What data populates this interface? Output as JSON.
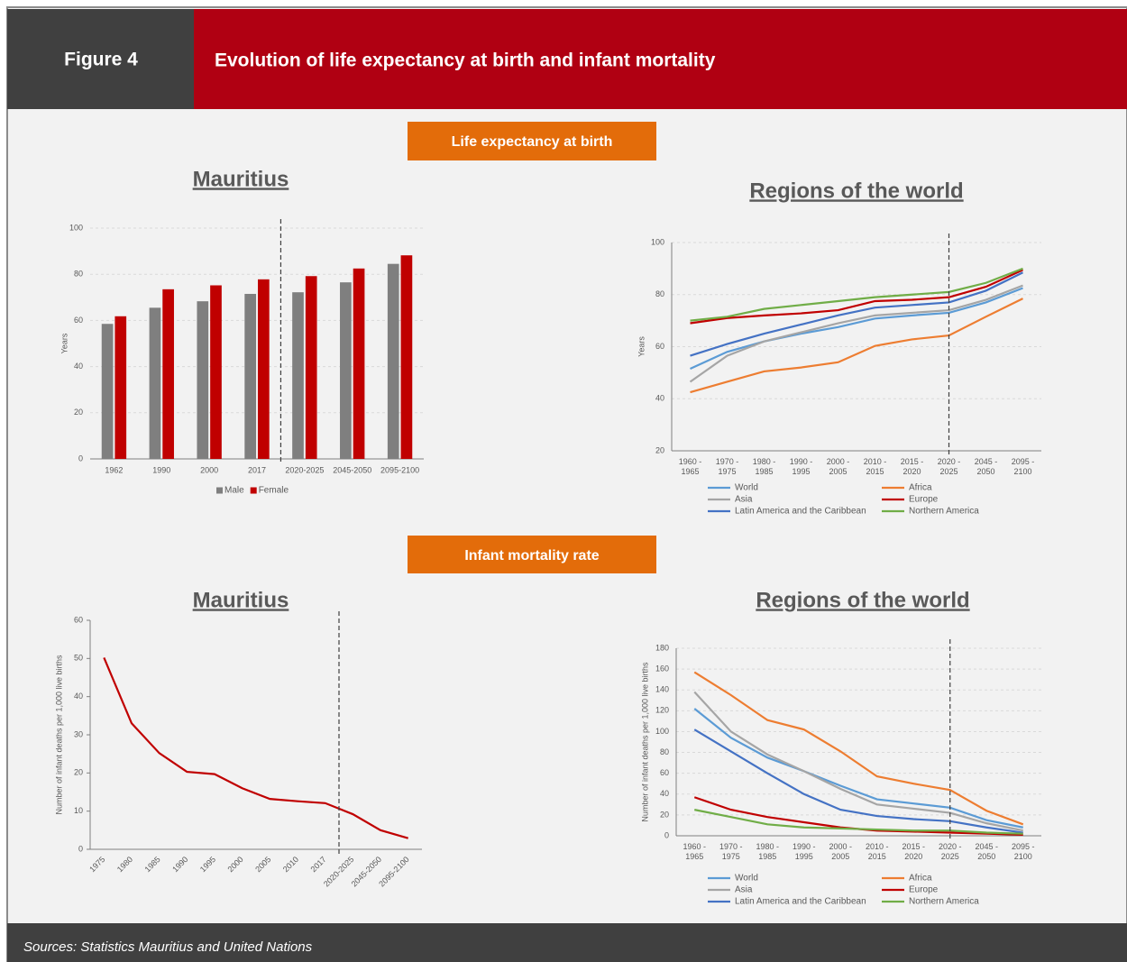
{
  "header": {
    "figure": "Figure 4",
    "title": "Evolution of life expectancy at birth and infant mortality"
  },
  "sections": [
    "Life expectancy at birth",
    "Infant mortality rate"
  ],
  "sources": "Sources: Statistics Mauritius and United Nations",
  "chart_data": [
    {
      "type": "bar",
      "title": "Mauritius",
      "y_label": "Years",
      "categories": [
        "1962",
        "1990",
        "2000",
        "2017",
        "2020-2025",
        "2045-2050",
        "2095-2100"
      ],
      "series": [
        {
          "name": "Male",
          "color": "#7f7f7f",
          "values": [
            58.5,
            65.5,
            68.3,
            71.5,
            72.2,
            76.5,
            84.5
          ]
        },
        {
          "name": "Female",
          "color": "#c00000",
          "values": [
            61.8,
            73.5,
            75.2,
            77.8,
            79.2,
            82.5,
            88.2
          ]
        }
      ],
      "ylim": [
        0,
        100
      ],
      "yticks": [
        0,
        20,
        40,
        60,
        80,
        100
      ],
      "grid": true,
      "legend": "bottom"
    },
    {
      "type": "line",
      "title": "Regions of the world",
      "y_label": "Years",
      "categories": [
        "1960 - 1965",
        "1970 - 1975",
        "1980 - 1985",
        "1990 - 1995",
        "2000 - 2005",
        "2010 - 2015",
        "2015 - 2020",
        "2020 - 2025",
        "2045 - 2050",
        "2095 - 2100"
      ],
      "series": [
        {
          "name": "World",
          "color": "#5b9bd5",
          "values": [
            51.5,
            58,
            62,
            65,
            67.5,
            70.8,
            72,
            73,
            77,
            82.5
          ]
        },
        {
          "name": "Africa",
          "color": "#ed7d31",
          "values": [
            42.5,
            46.5,
            50.5,
            52,
            54,
            60.3,
            62.8,
            64.3,
            71.5,
            78.5
          ]
        },
        {
          "name": "Asia",
          "color": "#a5a5a5",
          "values": [
            46.5,
            56.5,
            62,
            65.5,
            69,
            72,
            73,
            74,
            78,
            83.5
          ]
        },
        {
          "name": "Europe",
          "color": "#c00000",
          "values": [
            69,
            71,
            72,
            72.8,
            74,
            77.5,
            78,
            79,
            83,
            89.5
          ]
        },
        {
          "name": "Latin America and the Caribbean",
          "color": "#4472c4",
          "values": [
            56.5,
            61,
            65,
            68.5,
            72,
            75,
            76,
            77,
            81.5,
            88.5
          ]
        },
        {
          "name": "Northern America",
          "color": "#70ad47",
          "values": [
            70,
            71.5,
            74.5,
            76,
            77.5,
            79,
            80,
            81,
            84.5,
            90
          ]
        }
      ],
      "ylim": [
        20,
        100
      ],
      "yticks": [
        20,
        40,
        60,
        80,
        100
      ],
      "grid": true,
      "legend": "bottom"
    },
    {
      "type": "line",
      "title": "Mauritius",
      "y_label": "Number of infant deaths per 1,000 live births",
      "categories": [
        "1975",
        "1980",
        "1985",
        "1990",
        "1995",
        "2000",
        "2005",
        "2010",
        "2017",
        "2020-2025",
        "2045-2050",
        "2095-2100"
      ],
      "series": [
        {
          "color": "#c00000",
          "values": [
            50.2,
            33,
            25.2,
            20.3,
            19.7,
            16,
            13.2,
            12.6,
            12.1,
            9.2,
            5,
            2.9
          ]
        }
      ],
      "ylim": [
        0,
        60
      ],
      "yticks": [
        0,
        10,
        20,
        30,
        40,
        50,
        60
      ],
      "grid": false
    },
    {
      "type": "line",
      "title": "Regions of the world",
      "y_label": "Number of infant deaths per 1,000 live births",
      "categories": [
        "1960 - 1965",
        "1970 - 1975",
        "1980 - 1985",
        "1990 - 1995",
        "2000 - 2005",
        "2010 - 2015",
        "2015 - 2020",
        "2020 - 2025",
        "2045 - 2050",
        "2095 - 2100"
      ],
      "series": [
        {
          "name": "World",
          "color": "#5b9bd5",
          "values": [
            122,
            94,
            75,
            62,
            48,
            35,
            31,
            27,
            15,
            8
          ]
        },
        {
          "name": "Africa",
          "color": "#ed7d31",
          "values": [
            157,
            135,
            111,
            102,
            81,
            57,
            50,
            44,
            24,
            11
          ]
        },
        {
          "name": "Asia",
          "color": "#a5a5a5",
          "values": [
            138,
            100,
            78,
            62,
            45,
            30,
            26,
            22,
            12,
            5
          ]
        },
        {
          "name": "Europe",
          "color": "#c00000",
          "values": [
            37,
            25,
            18,
            13,
            8,
            5,
            4,
            3,
            2,
            1
          ]
        },
        {
          "name": "Latin America and the Caribbean",
          "color": "#4472c4",
          "values": [
            102,
            81,
            60,
            40,
            25,
            19,
            16,
            14,
            8,
            3
          ]
        },
        {
          "name": "Northern America",
          "color": "#70ad47",
          "values": [
            25,
            18,
            11,
            8,
            7,
            6,
            5,
            5,
            3,
            2
          ]
        }
      ],
      "ylim": [
        0,
        180
      ],
      "yticks": [
        0,
        20,
        40,
        60,
        80,
        100,
        120,
        140,
        160,
        180
      ],
      "grid": true,
      "legend": "bottom"
    }
  ]
}
